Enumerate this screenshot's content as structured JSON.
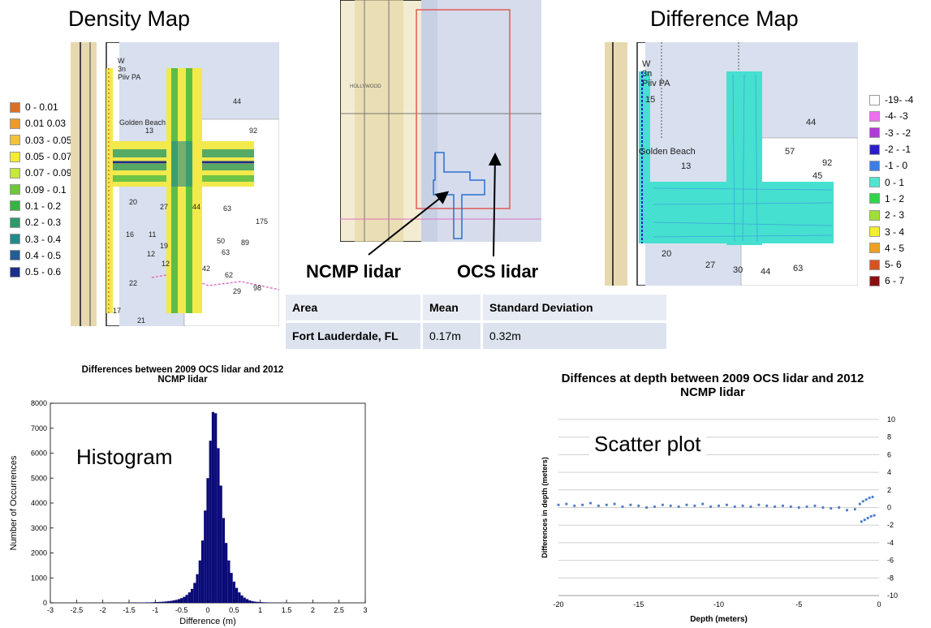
{
  "density_map": {
    "title": "Density Map",
    "legend": [
      {
        "label": "0 - 0.01",
        "color": "#d9702a"
      },
      {
        "label": "0.01 0.03",
        "color": "#eb9b2c"
      },
      {
        "label": "0.03 - 0.05",
        "color": "#f2c23a"
      },
      {
        "label": "0.05 - 0.07",
        "color": "#f5ec31"
      },
      {
        "label": "0.07 - 0.09",
        "color": "#c6e83c"
      },
      {
        "label": "0.09 - 0.1",
        "color": "#6cc83a"
      },
      {
        "label": "0.1 - 0.2",
        "color": "#36b341"
      },
      {
        "label": "0.2 - 0.3",
        "color": "#2e9a6a"
      },
      {
        "label": "0.3 - 0.4",
        "color": "#238a8c"
      },
      {
        "label": "0.4 - 0.5",
        "color": "#215d96"
      },
      {
        "label": "0.5 - 0.6",
        "color": "#1b2f8a"
      }
    ]
  },
  "difference_map": {
    "title": "Difference Map",
    "legend": [
      {
        "label": "-19- -4",
        "color": "#ffffff"
      },
      {
        "label": "-4- -3",
        "color": "#ee6ef0"
      },
      {
        "label": "-3 - -2",
        "color": "#b23ad6"
      },
      {
        "label": "-2 - -1",
        "color": "#2b1ec8"
      },
      {
        "label": "-1 - 0",
        "color": "#3a7fe8"
      },
      {
        "label": "0 - 1",
        "color": "#4ee6d2"
      },
      {
        "label": "1 - 2",
        "color": "#2ed64a"
      },
      {
        "label": "2 - 3",
        "color": "#9fe034"
      },
      {
        "label": "3 - 4",
        "color": "#f5ee2c"
      },
      {
        "label": "4 - 5",
        "color": "#f0a020"
      },
      {
        "label": "5- 6",
        "color": "#d4541e"
      },
      {
        "label": "6 - 7",
        "color": "#8a1010"
      }
    ],
    "chart_labels": [
      "W",
      "3n",
      "Piiv PA",
      "15",
      "44",
      "Golden Beach",
      "13",
      "57",
      "92",
      "45",
      "20",
      "27",
      "30",
      "44",
      "63"
    ]
  },
  "density_chart_labels": [
    "W",
    "3n",
    "Piiv PA",
    "Golden Beach",
    "13",
    "44",
    "92",
    "20",
    "27",
    "44",
    "63",
    "175",
    "16",
    "11",
    "19",
    "12",
    "12",
    "50",
    "63",
    "89",
    "42",
    "62",
    "29",
    "98",
    "22",
    "17",
    "21"
  ],
  "overview_map": {
    "place_label": "HOLLYWOOD",
    "ncmp_label": "NCMP lidar",
    "ocs_label": "OCS lidar"
  },
  "stats_table": {
    "headers": [
      "Area",
      "Mean",
      "Standard Deviation"
    ],
    "rows": [
      [
        "Fort Lauderdale, FL",
        "0.17m",
        "0.32m"
      ]
    ]
  },
  "chart_data": [
    {
      "type": "bar",
      "title": "Differences between  2009 OCS lidar and 2012 NCMP lidar",
      "overlay_label": "Histogram",
      "xlabel": "Difference (m)",
      "ylabel": "Number of Occurrences",
      "xlim": [
        -3,
        3
      ],
      "ylim": [
        0,
        8000
      ],
      "xticks": [
        "-3",
        "-2.5",
        "-2",
        "-1.5",
        "-1",
        "-0.5",
        "0",
        "0.5",
        "1",
        "1.5",
        "2",
        "2.5",
        "3"
      ],
      "yticks": [
        "0",
        "1000",
        "2000",
        "3000",
        "4000",
        "5000",
        "6000",
        "7000",
        "8000"
      ],
      "bin_width": 0.05,
      "bin_centers": [
        -1.5,
        -1.45,
        -1.4,
        -1.35,
        -1.3,
        -1.25,
        -1.2,
        -1.15,
        -1.1,
        -1.05,
        -1.0,
        -0.95,
        -0.9,
        -0.85,
        -0.8,
        -0.75,
        -0.7,
        -0.65,
        -0.6,
        -0.55,
        -0.5,
        -0.45,
        -0.4,
        -0.35,
        -0.3,
        -0.25,
        -0.2,
        -0.15,
        -0.1,
        -0.05,
        0.0,
        0.05,
        0.1,
        0.15,
        0.2,
        0.25,
        0.3,
        0.35,
        0.4,
        0.45,
        0.5,
        0.55,
        0.6,
        0.65,
        0.7,
        0.75,
        0.8,
        0.85,
        0.9,
        0.95,
        1.0,
        1.05,
        1.1,
        1.15,
        1.2,
        1.25,
        1.3,
        1.35,
        1.4,
        1.45,
        1.5
      ],
      "values": [
        10,
        10,
        15,
        10,
        15,
        15,
        15,
        20,
        20,
        25,
        30,
        35,
        40,
        45,
        55,
        70,
        80,
        100,
        120,
        150,
        190,
        240,
        320,
        420,
        560,
        800,
        1150,
        1700,
        2500,
        3700,
        5000,
        6500,
        7650,
        7600,
        6200,
        4700,
        3400,
        2400,
        1700,
        1200,
        850,
        600,
        420,
        300,
        210,
        150,
        100,
        70,
        50,
        40,
        30,
        25,
        20,
        15,
        12,
        10,
        8,
        6,
        5,
        4,
        3
      ],
      "grid": false
    },
    {
      "type": "scatter",
      "title": "Diffences at depth between 2009 OCS lidar and 2012 NCMP lidar",
      "overlay_label": "Scatter plot",
      "xlabel": "Depth (meters)",
      "ylabel": "Differences in depth (meters)",
      "xlim": [
        -20,
        0
      ],
      "ylim": [
        -10,
        10
      ],
      "xticks": [
        "-20",
        "-15",
        "-10",
        "-5",
        "0"
      ],
      "yticks": [
        "10",
        "8",
        "6",
        "4",
        "2",
        "0",
        "-2",
        "-4",
        "-6",
        "-8",
        "-10"
      ],
      "grid": true,
      "series_color": "#4a7fd0",
      "x": [
        -20,
        -19.5,
        -19,
        -18.5,
        -18,
        -17.5,
        -17,
        -16.5,
        -16,
        -15.5,
        -15,
        -14.5,
        -14,
        -13.5,
        -13,
        -12.5,
        -12,
        -11.5,
        -11,
        -10.5,
        -10,
        -9.5,
        -9,
        -8.5,
        -8,
        -7.5,
        -7,
        -6.5,
        -6,
        -5.5,
        -5,
        -4.5,
        -4,
        -3.5,
        -3,
        -2.5,
        -2,
        -1.5,
        -1.2,
        -1.0,
        -0.8,
        -0.6,
        -0.4,
        -1.1,
        -0.9,
        -0.7,
        -0.5,
        -0.3
      ],
      "y": [
        0.3,
        0.4,
        0.2,
        0.3,
        0.5,
        0.2,
        0.3,
        0.4,
        0.1,
        0.3,
        0.2,
        0.0,
        0.1,
        0.3,
        0.2,
        0.1,
        0.3,
        0.2,
        0.4,
        0.1,
        0.2,
        0.3,
        0.1,
        0.2,
        0.1,
        0.3,
        0.2,
        0.1,
        0.2,
        0.1,
        0.0,
        0.1,
        0.2,
        0.0,
        -0.1,
        0.0,
        -0.3,
        -0.2,
        0.4,
        0.7,
        0.9,
        1.1,
        1.2,
        -1.6,
        -1.4,
        -1.2,
        -1.0,
        -0.9
      ]
    }
  ]
}
